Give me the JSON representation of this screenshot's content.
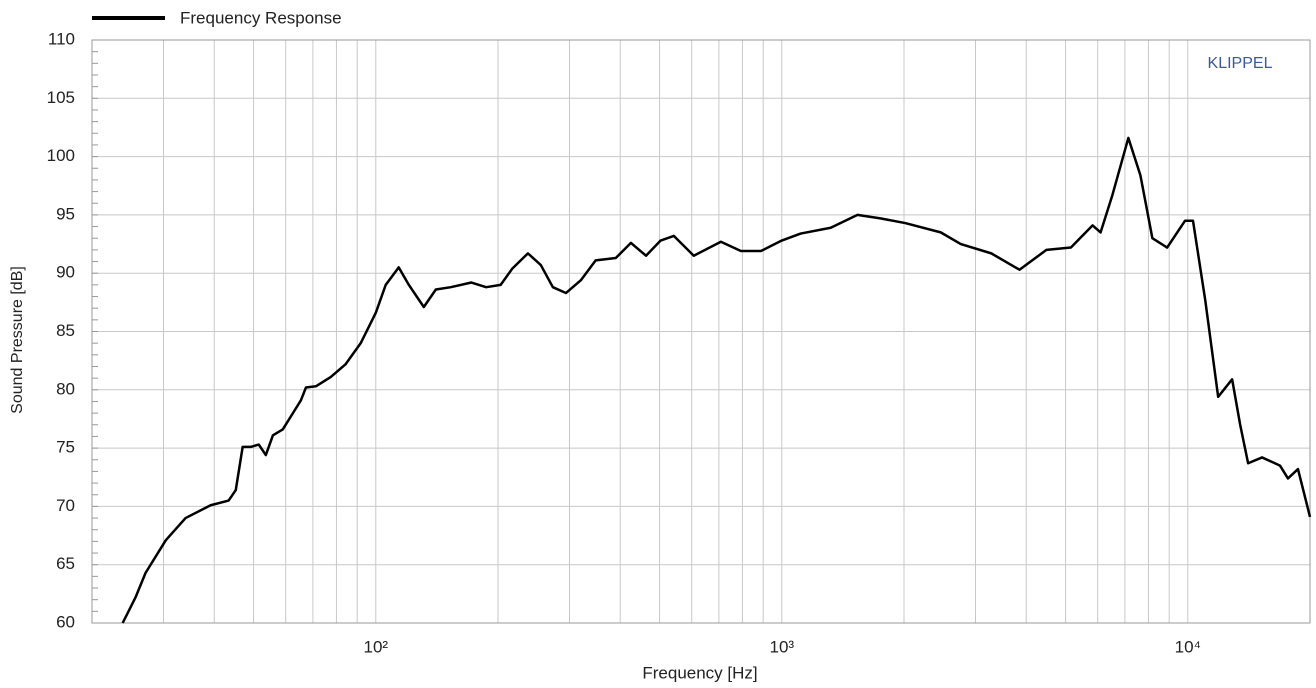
{
  "chart_data": {
    "type": "line",
    "legend_label": "Frequency Response",
    "brand": "KLIPPEL",
    "xlabel": "Frequency  [Hz]",
    "ylabel": "Sound Pressure  [dB]",
    "xscale": "log",
    "grid": true,
    "xlim": [
      20,
      20000
    ],
    "ylim": [
      60,
      110
    ],
    "xticks": [
      {
        "value": 100,
        "label": "10²"
      },
      {
        "value": 1000,
        "label": "10³"
      },
      {
        "value": 10000,
        "label": "10⁴"
      }
    ],
    "yticks": [
      60,
      65,
      70,
      75,
      80,
      85,
      90,
      95,
      100,
      105,
      110
    ],
    "x": [
      23.8,
      25.6,
      27.1,
      30.4,
      34.0,
      39.2,
      43.4,
      45.2,
      47.0,
      49.2,
      51.5,
      53.6,
      55.8,
      59.0,
      62.5,
      65.4,
      67.3,
      71.2,
      77.5,
      84.3,
      91.8,
      100,
      105.8,
      113.9,
      120.6,
      131.3,
      140.6,
      153,
      172,
      187,
      203,
      217,
      237,
      255,
      273,
      294,
      320,
      348,
      390,
      425,
      463,
      503,
      542,
      607,
      708,
      793,
      888,
      1000,
      1113,
      1320,
      1536,
      1749,
      2014,
      2463,
      2760,
      3282,
      3850,
      4486,
      5154,
      5829,
      6099,
      6521,
      7139,
      7643,
      8181,
      8895,
      9847,
      10300,
      11040,
      11880,
      12860,
      13460,
      14080,
      15240,
      16870,
      17650,
      18680,
      20000
    ],
    "series": [
      {
        "name": "Frequency Response",
        "color": "#000000",
        "values": [
          60,
          62.2,
          64.3,
          67.1,
          69.0,
          70.1,
          70.5,
          71.4,
          75.1,
          75.1,
          75.3,
          74.4,
          76.1,
          76.6,
          78.0,
          79.1,
          80.2,
          80.3,
          81.1,
          82.2,
          84.0,
          86.6,
          89.0,
          90.5,
          89.0,
          87.1,
          88.6,
          88.8,
          89.2,
          88.8,
          89.0,
          90.4,
          91.7,
          90.7,
          88.8,
          88.3,
          89.4,
          91.1,
          91.3,
          92.6,
          91.5,
          92.8,
          93.2,
          91.5,
          92.7,
          91.9,
          91.9,
          92.8,
          93.4,
          93.9,
          95.0,
          94.7,
          94.3,
          93.5,
          92.5,
          91.7,
          90.3,
          92.0,
          92.2,
          94.1,
          93.5,
          96.7,
          101.6,
          98.4,
          93.0,
          92.2,
          94.5,
          94.5,
          87.7,
          79.4,
          80.9,
          77.0,
          73.7,
          74.2,
          73.5,
          72.4,
          73.2,
          69.1
        ]
      }
    ]
  }
}
